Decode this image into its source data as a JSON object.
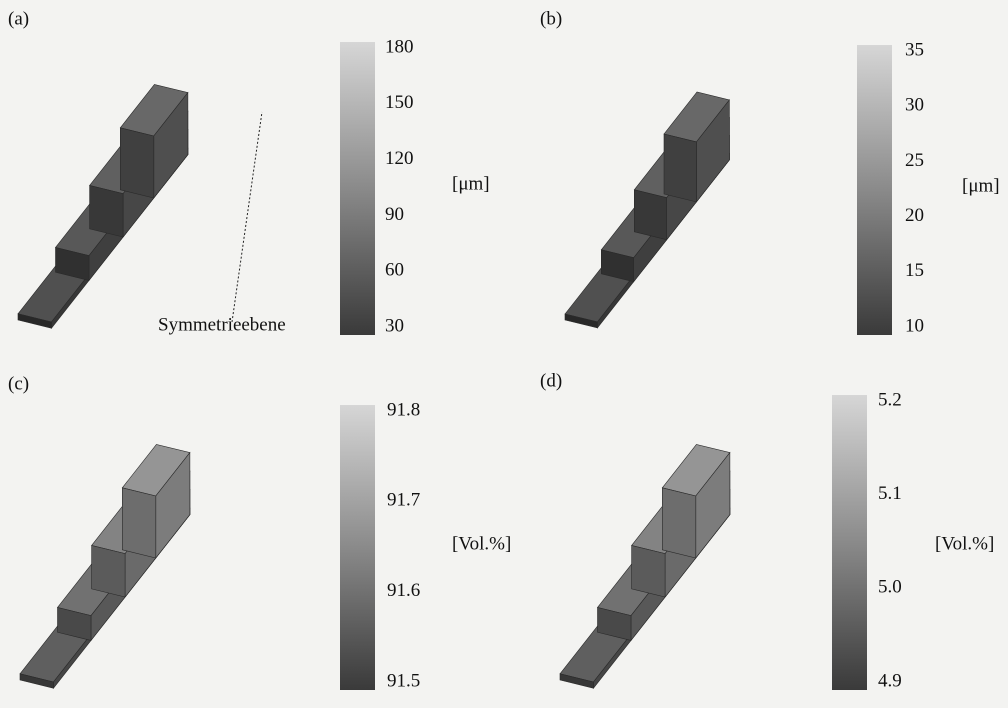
{
  "panels": [
    {
      "label": "(a)",
      "colorbar": {
        "ticks": [
          "180",
          "150",
          "120",
          "90",
          "60",
          "30"
        ],
        "unit": "[μm]"
      },
      "annotation": "Symmetrieebene"
    },
    {
      "label": "(b)",
      "colorbar": {
        "ticks": [
          "35",
          "30",
          "25",
          "20",
          "15",
          "10"
        ],
        "unit": "[μm]"
      }
    },
    {
      "label": "(c)",
      "colorbar": {
        "ticks": [
          "91.8",
          "91.7",
          "91.6",
          "91.5"
        ],
        "unit": "[Vol.%]"
      }
    },
    {
      "label": "(d)",
      "colorbar": {
        "ticks": [
          "5.2",
          "5.1",
          "5.0",
          "4.9"
        ],
        "unit": "[Vol.%]"
      }
    }
  ]
}
